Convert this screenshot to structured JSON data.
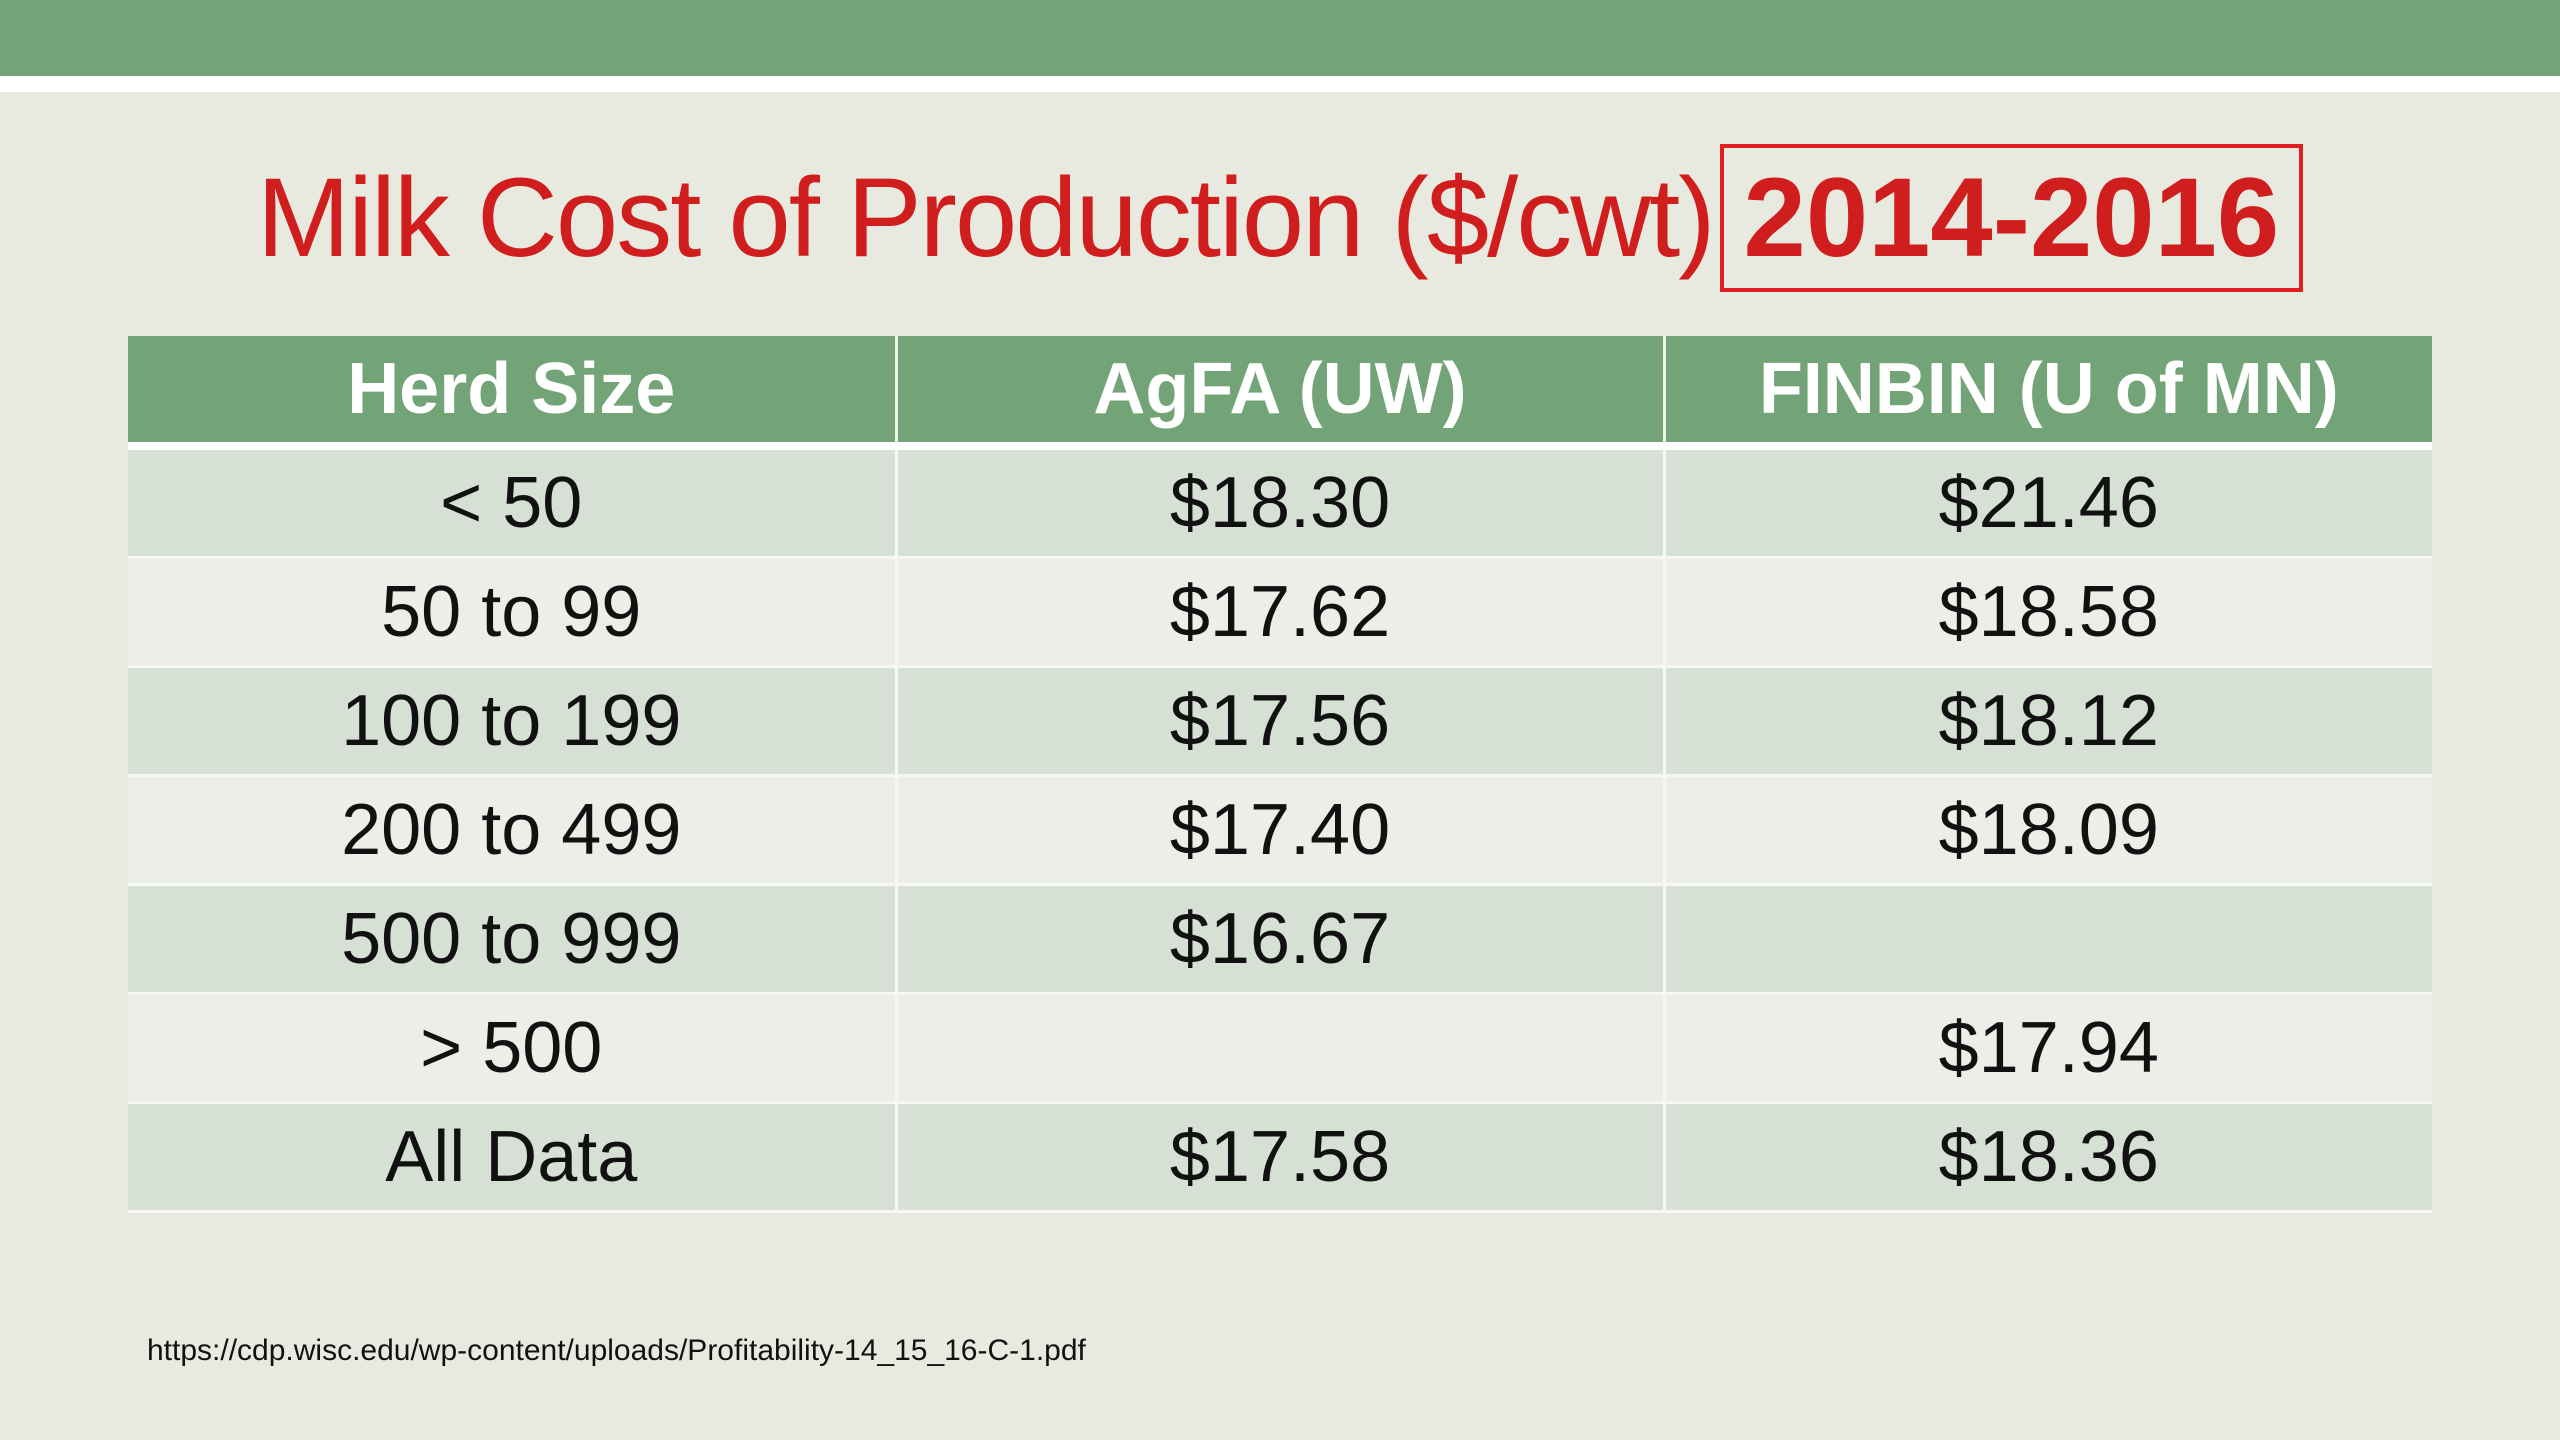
{
  "slide": {
    "title": "Milk Cost of Production ($/cwt)",
    "title_years": "2014-2016",
    "source_url": "https://cdp.wisc.edu/wp-content/uploads/Profitability-14_15_16-C-1.pdf"
  },
  "table": {
    "headers": [
      "Herd Size",
      "AgFA (UW)",
      "FINBIN (U of MN)"
    ],
    "rows": [
      [
        "< 50",
        "$18.30",
        "$21.46"
      ],
      [
        "50 to 99",
        "$17.62",
        "$18.58"
      ],
      [
        "100 to 199",
        "$17.56",
        "$18.12"
      ],
      [
        "200 to 499",
        "$17.40",
        "$18.09"
      ],
      [
        "500 to 999",
        "$16.67",
        ""
      ],
      [
        "> 500",
        "",
        "$17.94"
      ],
      [
        "All Data",
        "$17.58",
        "$18.36"
      ]
    ]
  },
  "colors": {
    "header_green": "#72a477",
    "title_red": "#d01d1d",
    "row_odd": "#d6e0d5",
    "row_even": "#eceee8",
    "background": "#e8eadf"
  }
}
